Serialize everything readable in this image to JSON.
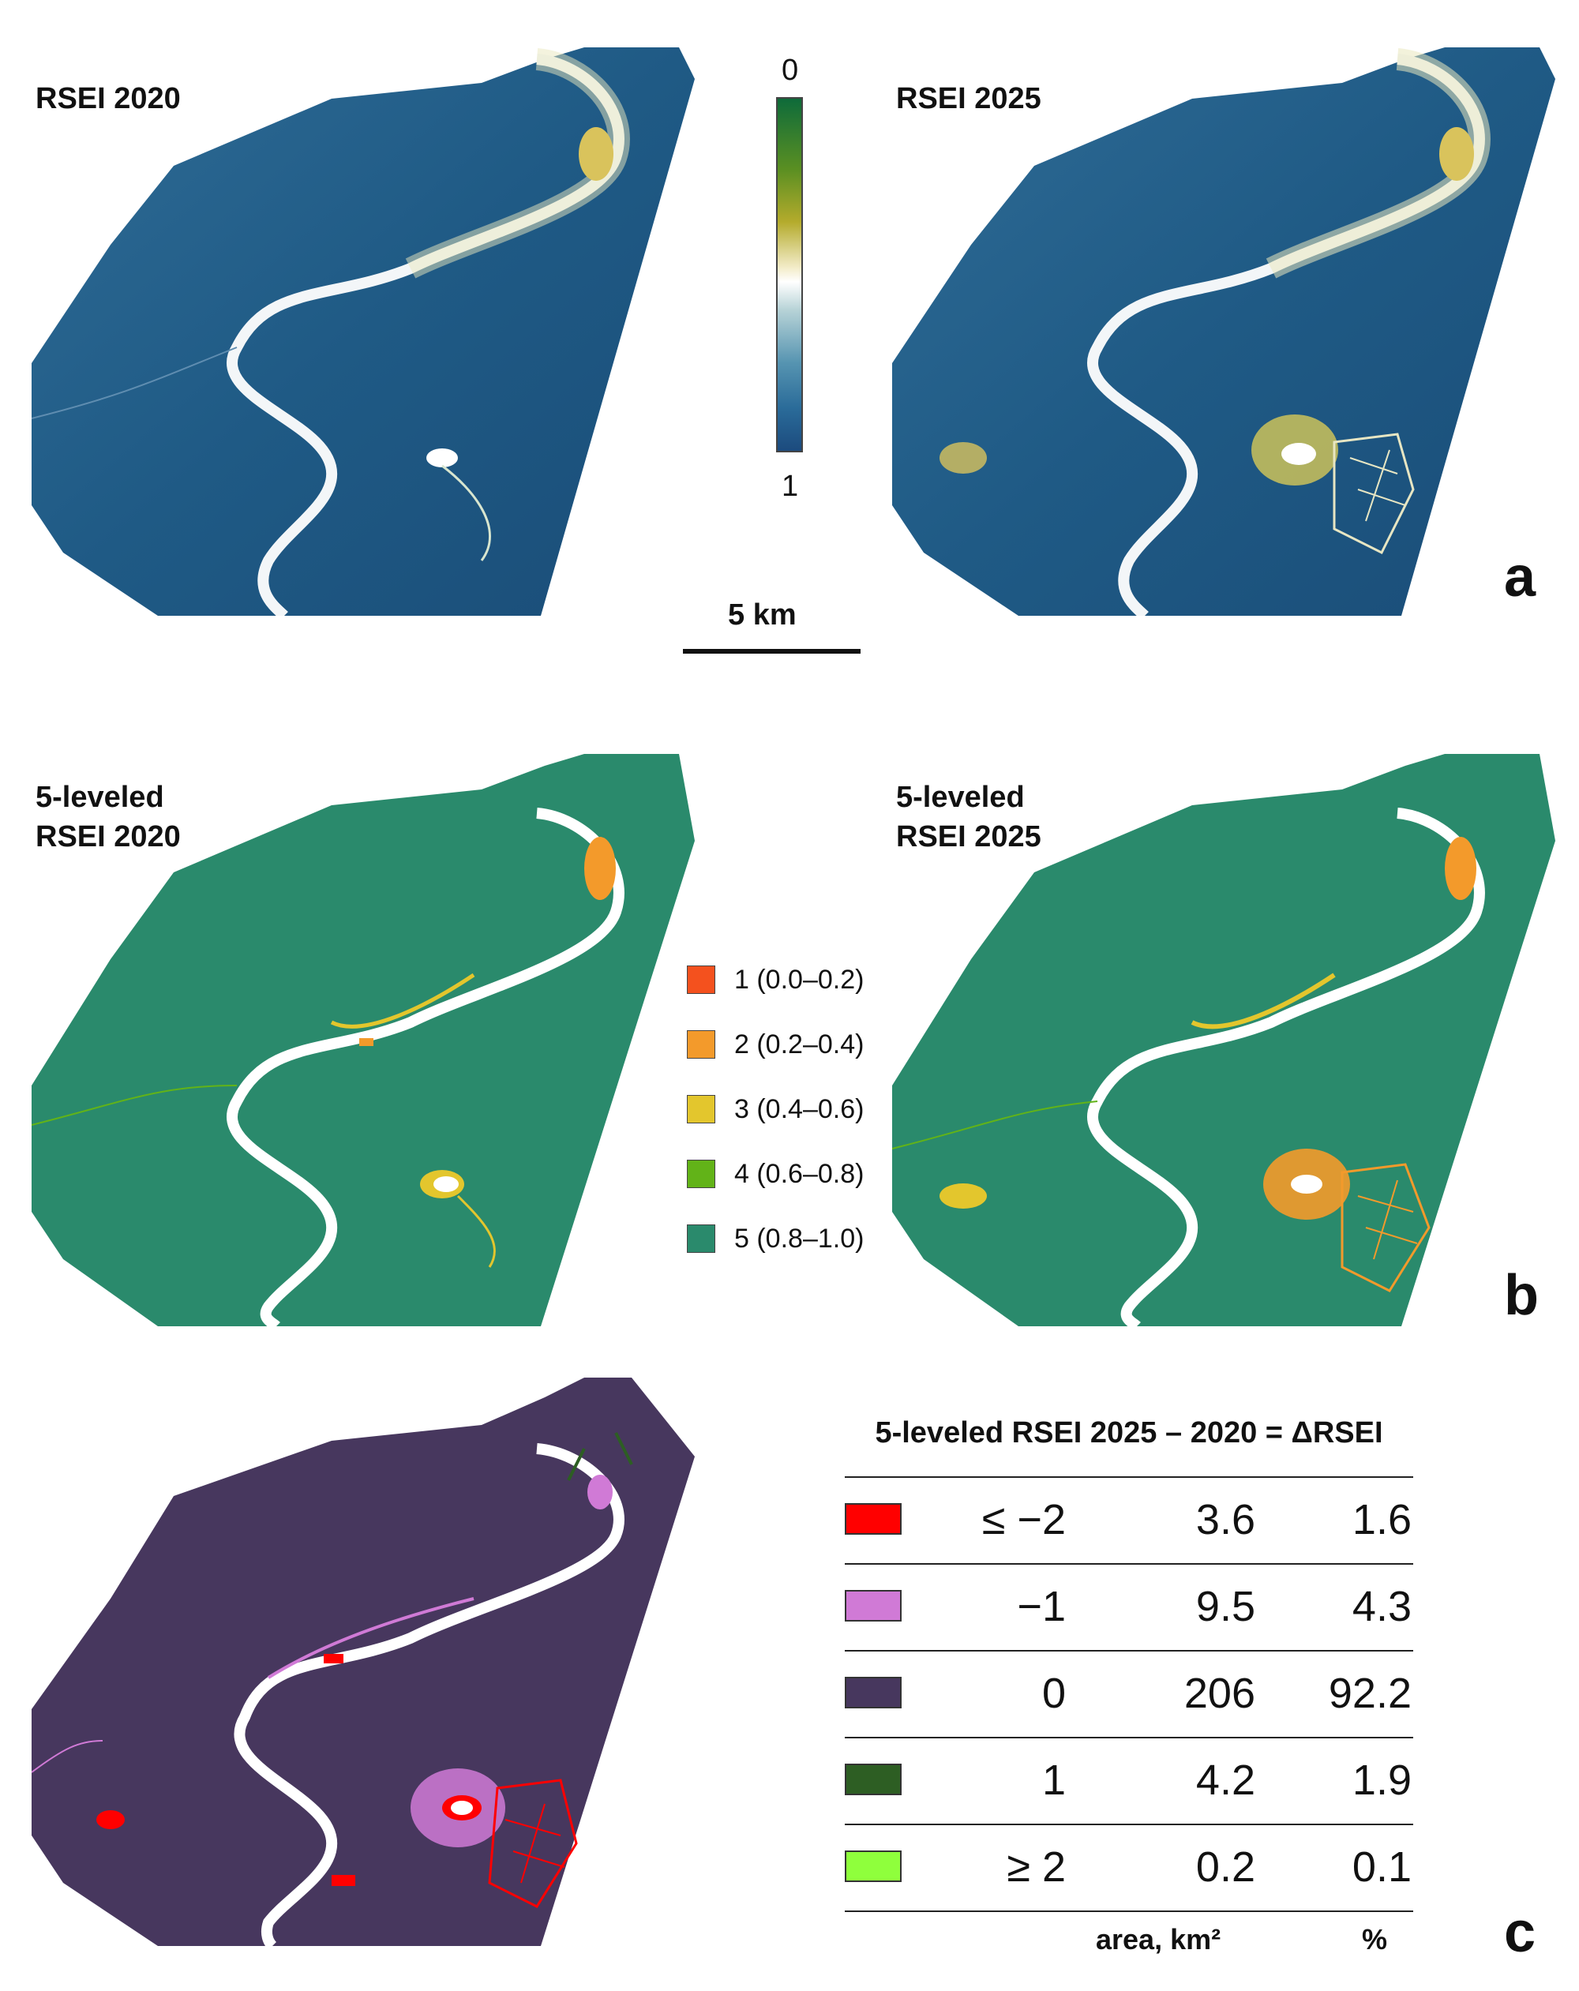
{
  "panel_a": {
    "left_title": "RSEI 2020",
    "right_title": "RSEI 2025",
    "colorbar_top": "0",
    "colorbar_bottom": "1",
    "scalebar_label": "5 km",
    "letter": "a",
    "colors": {
      "low": "#1f5a85",
      "mid": "#f5f3dc",
      "high": "#0e6b3a",
      "river": "#ffffff"
    }
  },
  "panel_b": {
    "left_title_line1": "5-leveled",
    "left_title_line2": "RSEI 2020",
    "right_title_line1": "5-leveled",
    "right_title_line2": "RSEI 2025",
    "letter": "b",
    "legend": [
      {
        "label": "1 (0.0–0.2)",
        "color": "#f4511e"
      },
      {
        "label": "2 (0.2–0.4)",
        "color": "#f39a2b"
      },
      {
        "label": "3 (0.4–0.6)",
        "color": "#e3c62d"
      },
      {
        "label": "4 (0.6–0.8)",
        "color": "#62b318"
      },
      {
        "label": "5 (0.8–1.0)",
        "color": "#2a8a6c"
      }
    ]
  },
  "panel_c": {
    "letter": "c",
    "table_title": "5-leveled RSEI 2025 – 2020 = ΔRSEI",
    "rows": [
      {
        "class": "≤ −2",
        "area": "3.6",
        "pct": "1.6",
        "color": "#ff0000"
      },
      {
        "class": "−1",
        "area": "9.5",
        "pct": "4.3",
        "color": "#d07ad6"
      },
      {
        "class": "0",
        "area": "206",
        "pct": "92.2",
        "color": "#47375e"
      },
      {
        "class": "1",
        "area": "4.2",
        "pct": "1.9",
        "color": "#2d5e23"
      },
      {
        "class": "≥ 2",
        "area": "0.2",
        "pct": "0.1",
        "color": "#8fff3c"
      }
    ],
    "footer_area": "area, km²",
    "footer_pct": "%"
  }
}
